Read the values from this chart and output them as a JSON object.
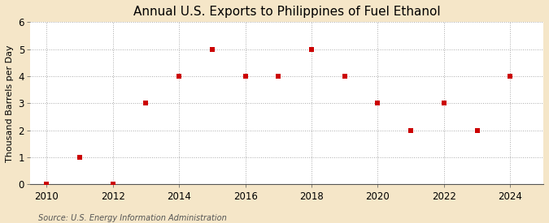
{
  "title": "Annual U.S. Exports to Philippines of Fuel Ethanol",
  "ylabel": "Thousand Barrels per Day",
  "source": "Source: U.S. Energy Information Administration",
  "outer_background_color": "#f5e6c8",
  "plot_background_color": "#ffffff",
  "x": [
    2010,
    2011,
    2012,
    2013,
    2014,
    2015,
    2016,
    2017,
    2018,
    2019,
    2020,
    2021,
    2022,
    2023,
    2024
  ],
  "y": [
    0,
    1,
    0,
    3,
    4,
    5,
    4,
    4,
    5,
    4,
    3,
    2,
    3,
    2,
    4
  ],
  "marker_color": "#cc0000",
  "marker": "s",
  "marker_size": 4,
  "xlim": [
    2009.5,
    2025.0
  ],
  "ylim": [
    0,
    6
  ],
  "xticks": [
    2010,
    2012,
    2014,
    2016,
    2018,
    2020,
    2022,
    2024
  ],
  "yticks": [
    0,
    1,
    2,
    3,
    4,
    5,
    6
  ],
  "grid_color": "#aaaaaa",
  "grid_style": ":",
  "title_fontsize": 11,
  "label_fontsize": 8,
  "tick_fontsize": 8.5,
  "source_fontsize": 7
}
